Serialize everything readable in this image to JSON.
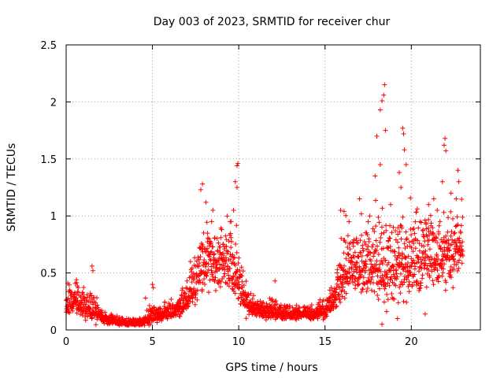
{
  "colors": {
    "series": "#ff0000",
    "grid": "#a0a0a0",
    "axis": "#000000"
  },
  "chart_data": {
    "type": "scatter",
    "title": "Day 003 of 2023, SRMTID for receiver chur",
    "xlabel": "GPS time / hours",
    "ylabel": "SRMTID / TECUs",
    "xlim": [
      0,
      24
    ],
    "ylim": [
      0,
      2.5
    ],
    "xticks": [
      0,
      5,
      10,
      15,
      20
    ],
    "yticks": [
      0,
      0.5,
      1,
      1.5,
      2,
      2.5
    ],
    "xtick_labels": [
      "0",
      "5",
      "10",
      "15",
      "20"
    ],
    "ytick_labels": [
      "0",
      "0.5",
      "1",
      "1.5",
      "2",
      "2.5"
    ],
    "grid": true,
    "marker": "+",
    "series": [
      {
        "name": "SRMTID",
        "envelope": {
          "x": [
            0,
            0.5,
            1,
            1.5,
            2,
            2.5,
            3,
            3.5,
            4,
            4.5,
            5,
            5.5,
            6,
            6.5,
            7,
            7.5,
            8,
            8.5,
            9,
            9.5,
            10,
            10.5,
            11,
            11.5,
            12,
            12.5,
            13,
            13.5,
            14,
            14.5,
            15,
            15.5,
            16,
            16.5,
            17,
            17.5,
            18,
            18.5,
            19,
            19.5,
            20,
            20.5,
            21,
            21.5,
            22,
            22.5,
            23
          ],
          "median": [
            0.22,
            0.26,
            0.2,
            0.18,
            0.12,
            0.09,
            0.07,
            0.06,
            0.06,
            0.07,
            0.12,
            0.13,
            0.15,
            0.18,
            0.26,
            0.42,
            0.6,
            0.65,
            0.58,
            0.55,
            0.4,
            0.22,
            0.18,
            0.16,
            0.16,
            0.15,
            0.14,
            0.14,
            0.14,
            0.14,
            0.16,
            0.25,
            0.45,
            0.55,
            0.55,
            0.58,
            0.55,
            0.5,
            0.55,
            0.6,
            0.6,
            0.62,
            0.65,
            0.65,
            0.65,
            0.7,
            0.75
          ],
          "spread": [
            0.12,
            0.14,
            0.12,
            0.14,
            0.06,
            0.05,
            0.04,
            0.03,
            0.03,
            0.04,
            0.08,
            0.07,
            0.07,
            0.09,
            0.12,
            0.25,
            0.35,
            0.35,
            0.3,
            0.3,
            0.25,
            0.12,
            0.08,
            0.08,
            0.09,
            0.08,
            0.06,
            0.06,
            0.06,
            0.07,
            0.08,
            0.15,
            0.3,
            0.3,
            0.3,
            0.32,
            0.35,
            0.4,
            0.4,
            0.42,
            0.38,
            0.35,
            0.35,
            0.33,
            0.33,
            0.3,
            0.3
          ],
          "count": 2200
        },
        "peaks": [
          [
            0.1,
            0.41
          ],
          [
            0.6,
            0.44
          ],
          [
            0.7,
            0.37
          ],
          [
            1.5,
            0.56
          ],
          [
            1.55,
            0.52
          ],
          [
            4.6,
            0.28
          ],
          [
            5.0,
            0.4
          ],
          [
            5.05,
            0.37
          ],
          [
            7.2,
            0.6
          ],
          [
            7.8,
            1.23
          ],
          [
            7.9,
            1.28
          ],
          [
            8.1,
            1.12
          ],
          [
            8.5,
            1.05
          ],
          [
            9.5,
            0.95
          ],
          [
            9.7,
            1.05
          ],
          [
            9.8,
            1.3
          ],
          [
            9.9,
            1.44
          ],
          [
            9.95,
            1.46
          ],
          [
            9.9,
            1.25
          ],
          [
            12.1,
            0.43
          ],
          [
            15.9,
            1.05
          ],
          [
            16.1,
            1.04
          ],
          [
            17.0,
            1.15
          ],
          [
            17.5,
            0.95
          ],
          [
            17.9,
            1.35
          ],
          [
            18.0,
            1.7
          ],
          [
            18.2,
            1.93
          ],
          [
            18.3,
            2.01
          ],
          [
            18.4,
            2.06
          ],
          [
            18.45,
            2.15
          ],
          [
            18.5,
            1.75
          ],
          [
            18.2,
            1.45
          ],
          [
            18.8,
            1.1
          ],
          [
            19.3,
            1.38
          ],
          [
            19.5,
            1.77
          ],
          [
            19.55,
            1.72
          ],
          [
            19.6,
            1.58
          ],
          [
            19.7,
            1.45
          ],
          [
            19.4,
            1.25
          ],
          [
            20.5,
            0.95
          ],
          [
            21.0,
            1.1
          ],
          [
            21.3,
            1.15
          ],
          [
            21.5,
            1.05
          ],
          [
            21.8,
            1.3
          ],
          [
            21.9,
            1.62
          ],
          [
            21.95,
            1.68
          ],
          [
            22.0,
            1.57
          ],
          [
            22.3,
            1.2
          ],
          [
            22.7,
            1.4
          ],
          [
            22.75,
            1.3
          ],
          [
            22.6,
            1.15
          ],
          [
            18.3,
            0.05
          ],
          [
            19.2,
            0.1
          ],
          [
            20.8,
            0.14
          ]
        ]
      }
    ]
  }
}
